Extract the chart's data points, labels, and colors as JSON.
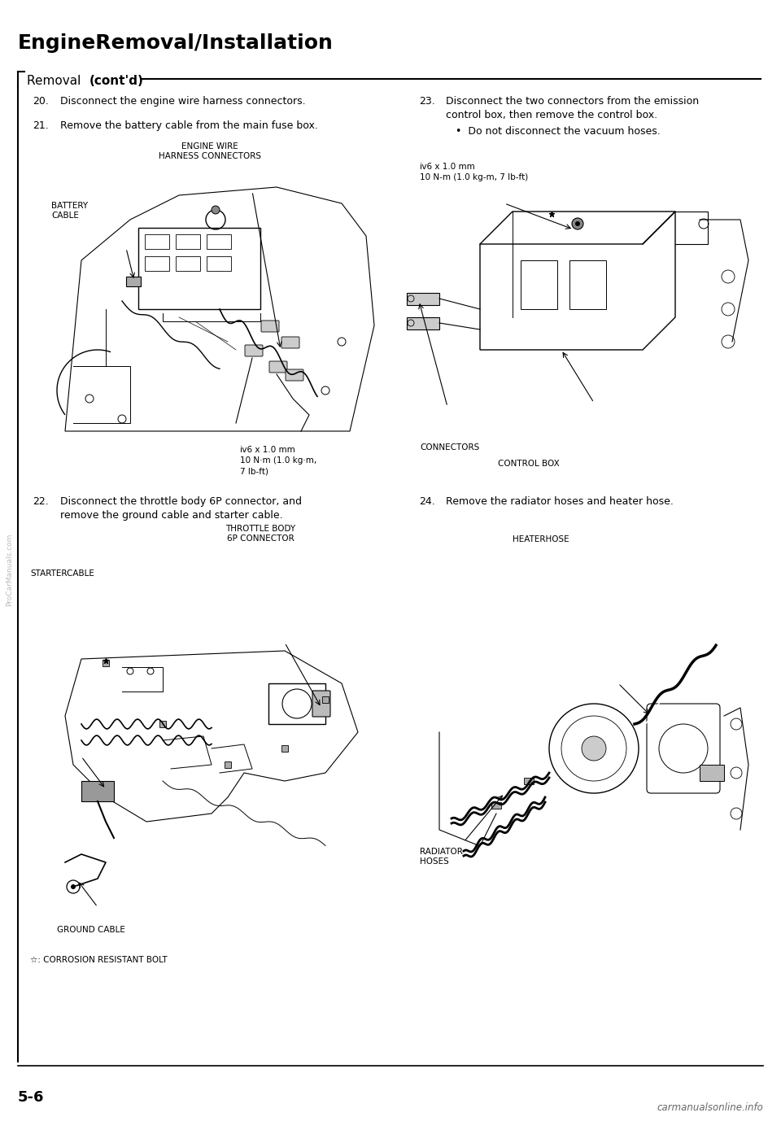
{
  "bg_color": "#ffffff",
  "page_width": 9.6,
  "page_height": 13.89,
  "title": "EngineRemoval/Installation",
  "section_label_normal": "Removal ",
  "section_label_bold": "(cont'd)",
  "page_number": "5-6",
  "watermark": "carmanualsonline.info",
  "side_watermark": "ProCarManuals.com",
  "font_color": "#000000",
  "title_fontsize": 18,
  "section_fontsize": 11,
  "body_fontsize": 9,
  "label_fontsize": 7.5,
  "note_fontsize": 7.5,
  "step20": "Disconnect the engine wire harness connectors.",
  "step21": "Remove the battery cable from the main fuse box.",
  "step22_line1": "Disconnect the throttle body 6P connector, and",
  "step22_line2": "remove the ground cable and starter cable.",
  "step23_line1": "Disconnect the two connectors from the emission",
  "step23_line2": "control box, then remove the control box.",
  "step23_bullet": "•  Do not disconnect the vacuum hoses.",
  "step24": "Remove the radiator hoses and heater hose.",
  "label_engine_wire": "ENGINE WIRE",
  "label_harness": "HARNESS CONNECTORS",
  "label_battery": "BATTERY",
  "label_cable": "CABLE",
  "bolt_note_left": "ⅳ6 x 1.0 mm\n10 N·m (1.0 kg·m,\n7 lb-ft)",
  "label_throttle": "THROTTLE BODY",
  "label_throttle2": "6P CONNECTOR",
  "label_starter": "STARTERCABLE",
  "label_ground": "GROUND CABLE",
  "label_corrosion": "☆: CORROSION RESISTANT BOLT",
  "bolt_note_right": "ⅳ6 x 1.0 mm\n10 N-m (1.0 kg-m, 7 lb-ft)",
  "label_connectors": "CONNECTORS",
  "label_control_box": "CONTROL BOX",
  "label_heater_hose": "HEATERHOSE",
  "label_radiator": "RADIATOR",
  "label_hoses": "HOSES"
}
